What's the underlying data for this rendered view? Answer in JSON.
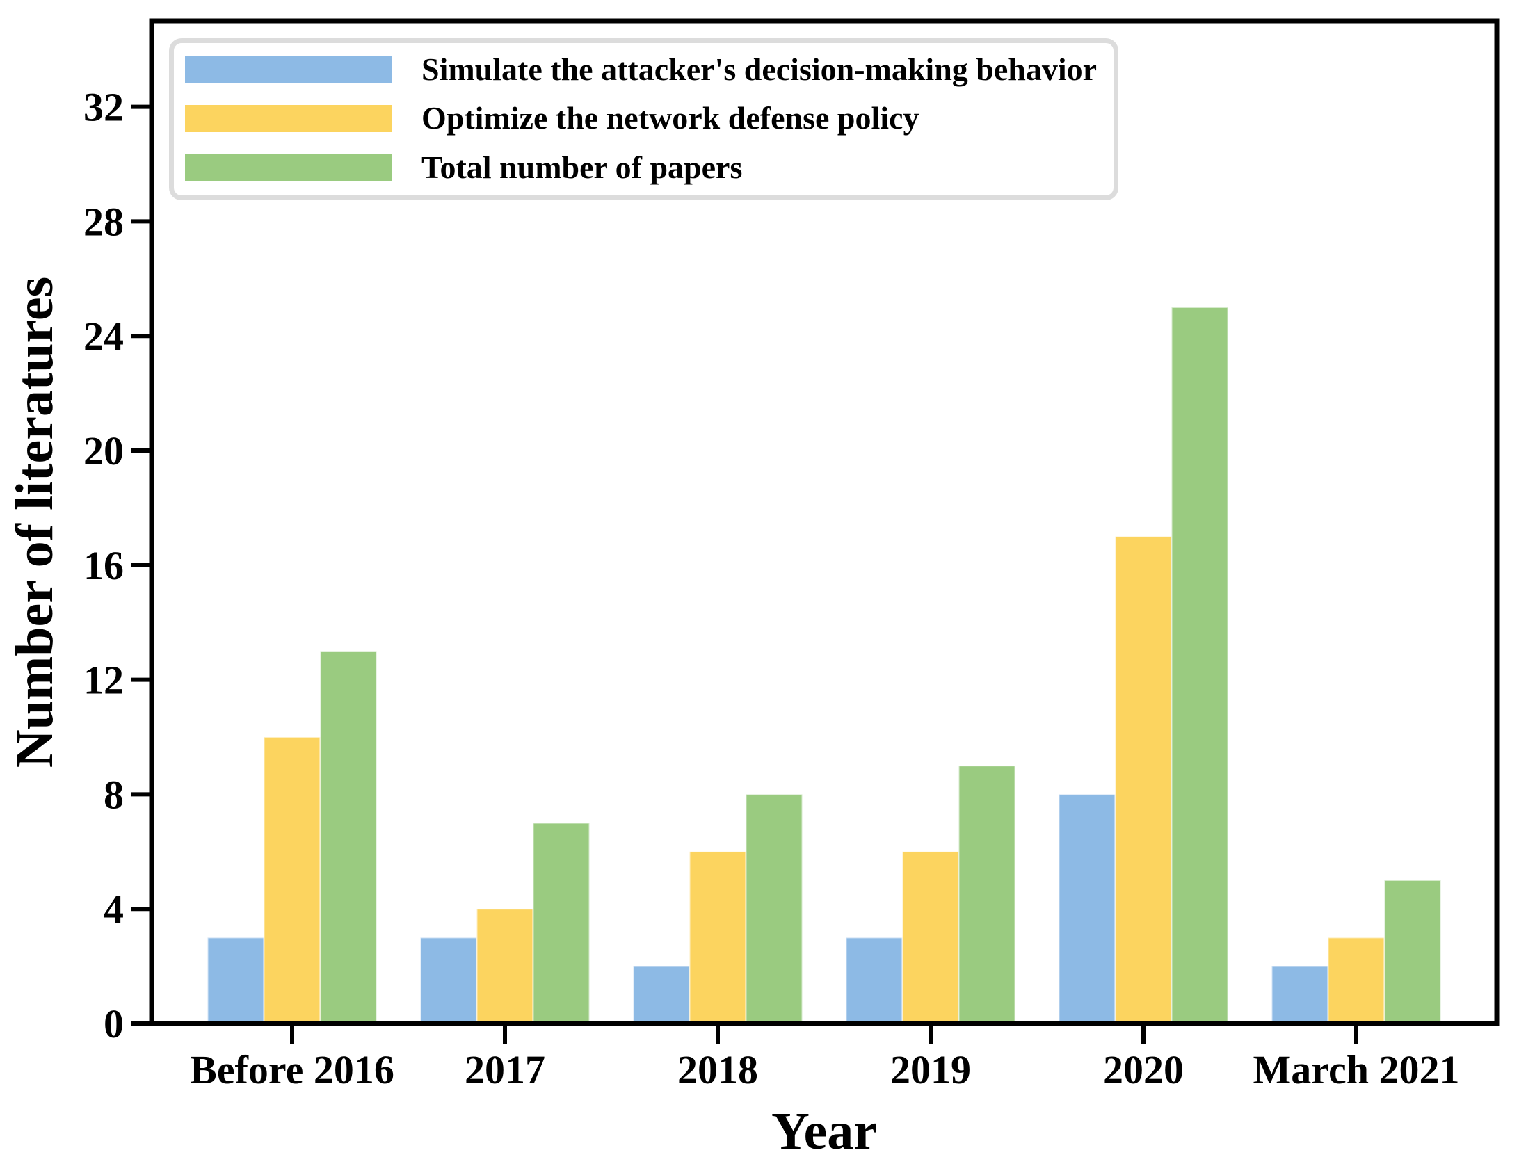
{
  "chart_data": {
    "type": "bar",
    "title": "",
    "xlabel": "Year",
    "ylabel": "Number of literatures",
    "categories": [
      "Before 2016",
      "2017",
      "2018",
      "2019",
      "2020",
      "March 2021"
    ],
    "series": [
      {
        "name": "Simulate the attacker's decision-making behavior",
        "color": "#8DBAE5",
        "values": [
          3,
          3,
          2,
          3,
          8,
          2
        ]
      },
      {
        "name": "Optimize the network defense policy",
        "color": "#FCD45F",
        "values": [
          10,
          4,
          6,
          6,
          17,
          3
        ]
      },
      {
        "name": "Total number of papers",
        "color": "#9ACB80",
        "values": [
          13,
          7,
          8,
          9,
          25,
          5
        ]
      }
    ],
    "yticks": [
      0,
      4,
      8,
      12,
      16,
      20,
      24,
      28,
      32
    ],
    "ylim": [
      0,
      35
    ],
    "grid": false,
    "legend_position": "upper left"
  },
  "style": {
    "axis_color": "#000000",
    "legend_border_color": "#dcdcdc",
    "background": "#ffffff"
  }
}
